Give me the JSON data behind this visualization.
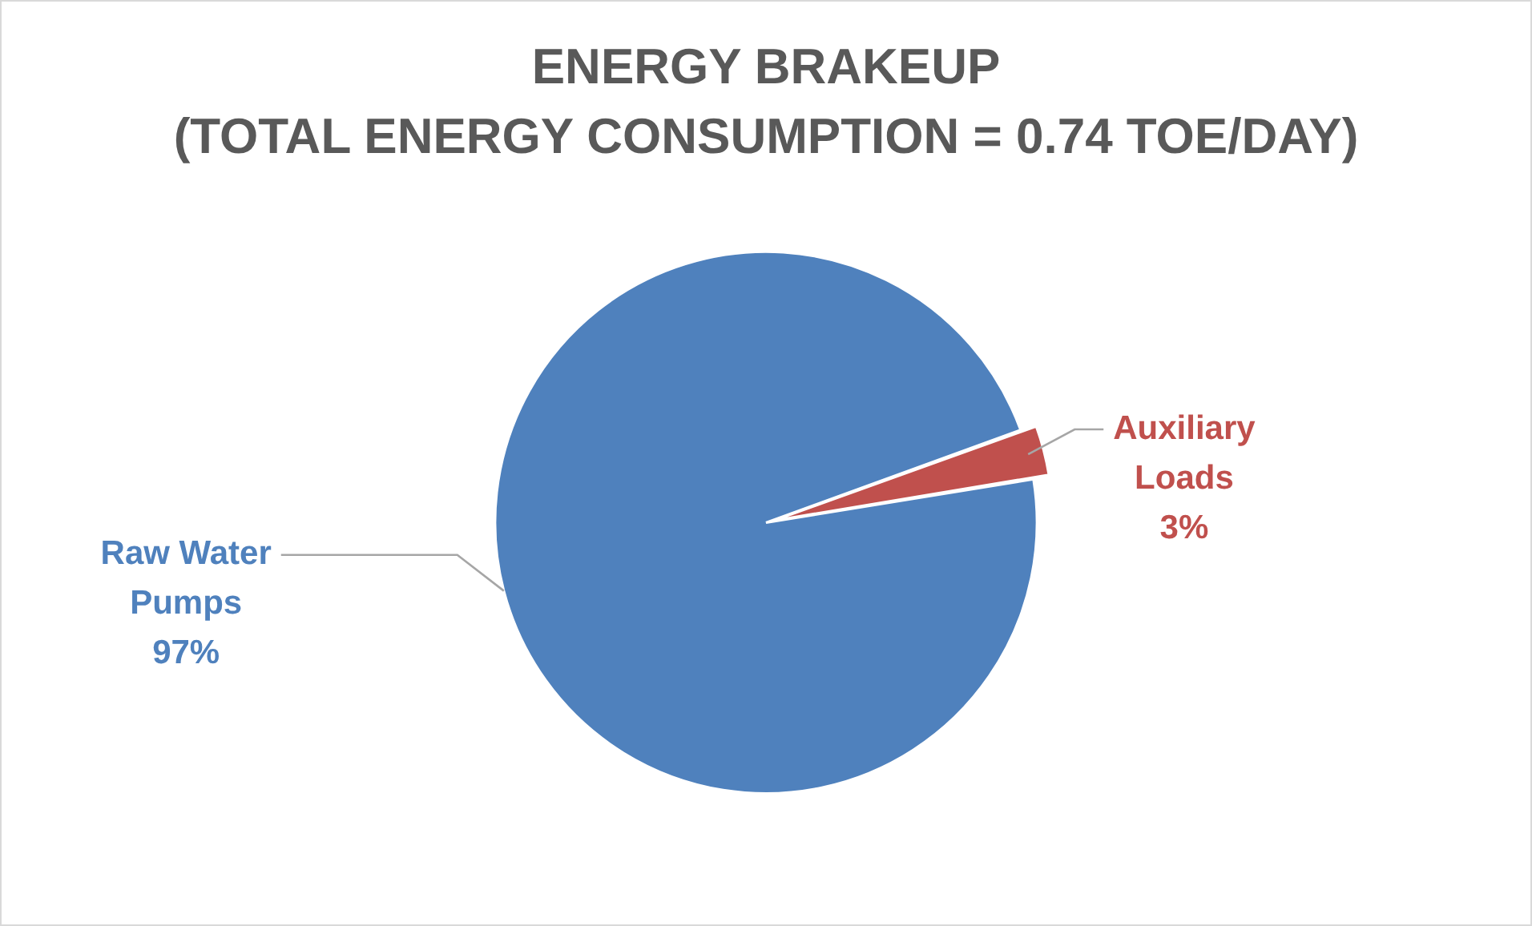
{
  "chart_data": {
    "type": "pie",
    "title": "ENERGY BRAKEUP",
    "subtitle": "(TOTAL ENERGY CONSUMPTION = 0.74 TOE/DAY)",
    "categories": [
      "Auxiliary Loads",
      "Raw Water Pumps"
    ],
    "values": [
      3,
      97
    ],
    "colors": [
      "#c0504d",
      "#4f81bd"
    ],
    "value_labels": [
      "3%",
      "97%"
    ],
    "legend": false
  }
}
